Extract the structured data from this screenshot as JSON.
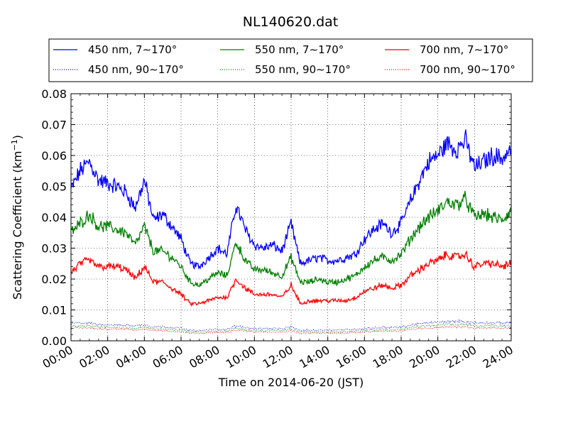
{
  "chart_data": {
    "type": "line",
    "title": "NL140620.dat",
    "xlabel": "Time on 2014-06-20 (JST)",
    "ylabel_main": "Scattering Coefficient (km",
    "ylabel_sup": "−1",
    "ylabel_end": ")",
    "xlim": [
      "00:00",
      "24:00"
    ],
    "ylim": [
      0,
      0.08
    ],
    "grid": true,
    "legend_position": "top",
    "x_ticks": [
      "00:00",
      "02:00",
      "04:00",
      "06:00",
      "08:00",
      "10:00",
      "12:00",
      "14:00",
      "16:00",
      "18:00",
      "20:00",
      "22:00",
      "24:00"
    ],
    "y_ticks": [
      "0.00",
      "0.01",
      "0.02",
      "0.03",
      "0.04",
      "0.05",
      "0.06",
      "0.07",
      "0.08"
    ],
    "x_hours": [
      0,
      0.5,
      1,
      1.5,
      2,
      2.5,
      3,
      3.5,
      4,
      4.5,
      5,
      5.5,
      6,
      6.5,
      7,
      7.5,
      8,
      8.5,
      9,
      9.5,
      10,
      10.5,
      11,
      11.5,
      12,
      12.5,
      13,
      13.5,
      14,
      14.5,
      15,
      15.5,
      16,
      16.5,
      17,
      17.5,
      18,
      18.5,
      19,
      19.5,
      20,
      20.5,
      21,
      21.5,
      22,
      22.5,
      23,
      23.5,
      24
    ],
    "series": [
      {
        "name": "450 nm, 7∼170°",
        "color": "#0000ff",
        "style": "solid",
        "values": [
          0.049,
          0.055,
          0.058,
          0.052,
          0.051,
          0.05,
          0.048,
          0.043,
          0.052,
          0.039,
          0.041,
          0.037,
          0.033,
          0.025,
          0.024,
          0.027,
          0.03,
          0.028,
          0.044,
          0.036,
          0.031,
          0.03,
          0.031,
          0.029,
          0.038,
          0.025,
          0.026,
          0.027,
          0.026,
          0.026,
          0.027,
          0.028,
          0.033,
          0.036,
          0.038,
          0.035,
          0.038,
          0.045,
          0.052,
          0.058,
          0.06,
          0.064,
          0.062,
          0.065,
          0.056,
          0.058,
          0.06,
          0.059,
          0.062
        ]
      },
      {
        "name": "550 nm, 7∼170°",
        "color": "#008000",
        "style": "solid",
        "values": [
          0.035,
          0.038,
          0.041,
          0.037,
          0.037,
          0.036,
          0.035,
          0.031,
          0.037,
          0.029,
          0.029,
          0.027,
          0.024,
          0.019,
          0.018,
          0.02,
          0.022,
          0.021,
          0.032,
          0.026,
          0.023,
          0.023,
          0.022,
          0.021,
          0.027,
          0.019,
          0.019,
          0.02,
          0.019,
          0.019,
          0.02,
          0.021,
          0.024,
          0.026,
          0.027,
          0.026,
          0.028,
          0.033,
          0.037,
          0.04,
          0.042,
          0.045,
          0.044,
          0.046,
          0.04,
          0.041,
          0.04,
          0.039,
          0.042
        ]
      },
      {
        "name": "700 nm, 7∼170°",
        "color": "#ff0000",
        "style": "solid",
        "values": [
          0.022,
          0.025,
          0.026,
          0.024,
          0.024,
          0.024,
          0.023,
          0.02,
          0.024,
          0.019,
          0.019,
          0.017,
          0.015,
          0.012,
          0.012,
          0.013,
          0.014,
          0.014,
          0.02,
          0.017,
          0.015,
          0.015,
          0.015,
          0.014,
          0.018,
          0.012,
          0.013,
          0.013,
          0.013,
          0.013,
          0.013,
          0.014,
          0.016,
          0.017,
          0.018,
          0.017,
          0.018,
          0.021,
          0.023,
          0.025,
          0.026,
          0.028,
          0.027,
          0.028,
          0.024,
          0.025,
          0.025,
          0.024,
          0.025
        ]
      },
      {
        "name": "450 nm, 90∼170°",
        "color": "#0000ff",
        "style": "dotted",
        "values": [
          0.0055,
          0.0058,
          0.0057,
          0.0053,
          0.0052,
          0.0051,
          0.005,
          0.0048,
          0.0052,
          0.0045,
          0.0045,
          0.0043,
          0.004,
          0.0034,
          0.0033,
          0.0036,
          0.0038,
          0.0037,
          0.0048,
          0.0043,
          0.004,
          0.0039,
          0.004,
          0.0039,
          0.0045,
          0.0033,
          0.0034,
          0.0035,
          0.0035,
          0.0035,
          0.0036,
          0.0037,
          0.004,
          0.0042,
          0.0044,
          0.0043,
          0.0044,
          0.005,
          0.0055,
          0.0058,
          0.006,
          0.0063,
          0.0062,
          0.0063,
          0.0057,
          0.0058,
          0.0058,
          0.0057,
          0.006
        ]
      },
      {
        "name": "550 nm, 90∼170°",
        "color": "#008000",
        "style": "dotted",
        "values": [
          0.0046,
          0.0048,
          0.0048,
          0.0045,
          0.0044,
          0.0043,
          0.0042,
          0.004,
          0.0044,
          0.0038,
          0.0038,
          0.0036,
          0.0034,
          0.0029,
          0.0028,
          0.003,
          0.0032,
          0.0031,
          0.004,
          0.0036,
          0.0034,
          0.0033,
          0.0034,
          0.0033,
          0.0038,
          0.0028,
          0.0029,
          0.003,
          0.0029,
          0.0029,
          0.003,
          0.0031,
          0.0034,
          0.0035,
          0.0037,
          0.0036,
          0.0037,
          0.0042,
          0.0046,
          0.0049,
          0.005,
          0.0053,
          0.0052,
          0.0053,
          0.0048,
          0.0049,
          0.0049,
          0.0048,
          0.005
        ]
      },
      {
        "name": "700 nm, 90∼170°",
        "color": "#ff0000",
        "style": "dotted",
        "values": [
          0.004,
          0.0042,
          0.0042,
          0.0039,
          0.0038,
          0.0038,
          0.0037,
          0.0035,
          0.0038,
          0.0033,
          0.0033,
          0.0031,
          0.0029,
          0.0025,
          0.0024,
          0.0026,
          0.0027,
          0.0027,
          0.0034,
          0.0031,
          0.0029,
          0.0029,
          0.0029,
          0.0028,
          0.0032,
          0.0024,
          0.0025,
          0.0025,
          0.0025,
          0.0025,
          0.0026,
          0.0027,
          0.0029,
          0.003,
          0.0032,
          0.0031,
          0.0032,
          0.0036,
          0.0039,
          0.0041,
          0.0043,
          0.0045,
          0.0044,
          0.0045,
          0.0041,
          0.0042,
          0.0042,
          0.0041,
          0.0043
        ]
      }
    ]
  }
}
